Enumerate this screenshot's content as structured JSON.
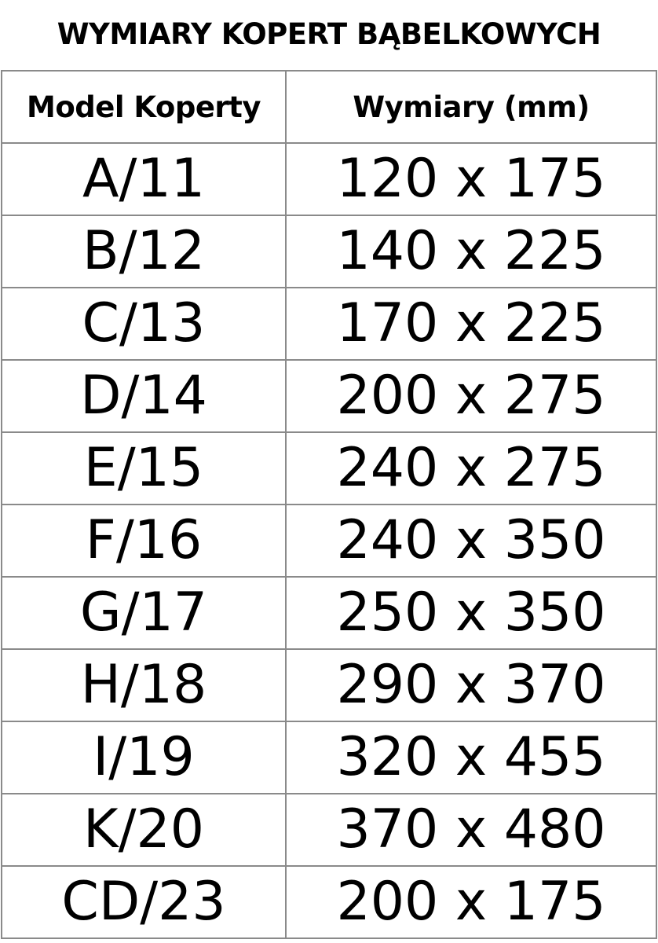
{
  "title": "WYMIARY KOPERT BĄBELKOWYCH",
  "table": {
    "headers": [
      "Model Koperty",
      "Wymiary (mm)"
    ],
    "rows": [
      [
        "A/11",
        "120 x 175"
      ],
      [
        "B/12",
        "140 x 225"
      ],
      [
        "C/13",
        "170 x 225"
      ],
      [
        "D/14",
        "200 x 275"
      ],
      [
        "E/15",
        "240 x 275"
      ],
      [
        "F/16",
        "240 x 350"
      ],
      [
        "G/17",
        "250 x 350"
      ],
      [
        "H/18",
        "290 x 370"
      ],
      [
        "I/19",
        "320 x 455"
      ],
      [
        "K/20",
        "370 x 480"
      ],
      [
        "CD/23",
        "200 x 175"
      ]
    ]
  }
}
